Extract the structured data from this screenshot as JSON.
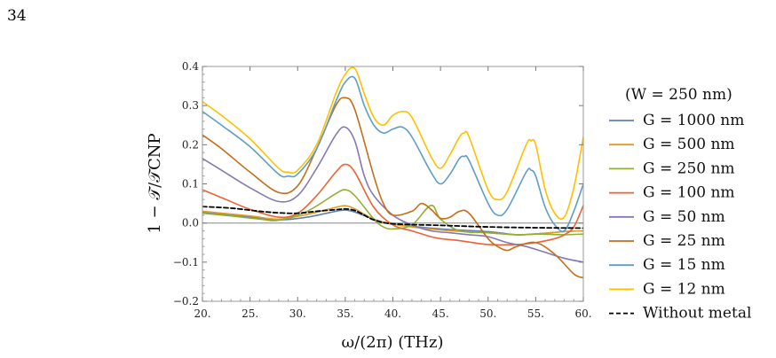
{
  "page": {
    "number": "34"
  },
  "chart_data": {
    "type": "line",
    "title": "",
    "xlabel": "ω/(2π) (THz)",
    "ylabel": "1 − 𝒯/𝒯CNP",
    "xlim": [
      20,
      60
    ],
    "ylim": [
      -0.2,
      0.4
    ],
    "xticks": [
      20,
      25,
      30,
      35,
      40,
      45,
      50,
      55,
      60
    ],
    "xtick_labels": [
      "20.",
      "25.",
      "30.",
      "35.",
      "40.",
      "45.",
      "50.",
      "55.",
      "60."
    ],
    "yticks": [
      -0.2,
      -0.1,
      0.0,
      0.1,
      0.2,
      0.3,
      0.4
    ],
    "ytick_labels": [
      "−0.2",
      "−0.1",
      "0.0",
      "0.1",
      "0.2",
      "0.3",
      "0.4"
    ],
    "grid": false,
    "zero_line": true,
    "legend_title": "(W = 250 nm)",
    "legend_position": "right",
    "series": [
      {
        "name": "G = 1000 nm",
        "color": "#5e81b5",
        "dash": "solid",
        "x": [
          20,
          25,
          28,
          31,
          34,
          35,
          36,
          38,
          40,
          45,
          50,
          53,
          55,
          58,
          60
        ],
        "y": [
          0.027,
          0.015,
          0.008,
          0.015,
          0.03,
          0.033,
          0.028,
          0.01,
          -0.003,
          -0.015,
          -0.022,
          -0.03,
          -0.028,
          -0.022,
          -0.02
        ]
      },
      {
        "name": "G = 500 nm",
        "color": "#e19c24",
        "dash": "solid",
        "x": [
          20,
          25,
          28,
          31,
          34,
          35,
          36,
          38,
          40,
          45,
          50,
          53,
          55,
          58,
          60
        ],
        "y": [
          0.03,
          0.018,
          0.01,
          0.022,
          0.04,
          0.044,
          0.036,
          0.01,
          -0.003,
          -0.018,
          -0.025,
          -0.03,
          -0.028,
          -0.022,
          -0.02
        ]
      },
      {
        "name": "G = 250 nm",
        "color": "#8fb032",
        "dash": "solid",
        "x": [
          20,
          23,
          26,
          28,
          31,
          34,
          35,
          36,
          38,
          39,
          40,
          42,
          44,
          45,
          47,
          50,
          53,
          55,
          58,
          60
        ],
        "y": [
          0.025,
          0.018,
          0.01,
          0.007,
          0.03,
          0.075,
          0.085,
          0.07,
          0.01,
          -0.01,
          -0.015,
          -0.005,
          0.045,
          0.01,
          -0.02,
          -0.025,
          -0.03,
          -0.028,
          -0.03,
          -0.028
        ]
      },
      {
        "name": "G = 100 nm",
        "color": "#eb6235",
        "dash": "solid",
        "x": [
          20,
          22,
          25,
          28,
          30,
          32,
          34,
          35,
          36,
          38,
          40,
          42,
          44,
          45,
          47,
          50,
          53,
          55,
          57,
          58,
          59,
          60
        ],
        "y": [
          0.085,
          0.065,
          0.035,
          0.015,
          0.025,
          0.07,
          0.13,
          0.15,
          0.13,
          0.04,
          -0.005,
          -0.02,
          -0.035,
          -0.04,
          -0.045,
          -0.055,
          -0.055,
          -0.05,
          -0.04,
          -0.03,
          -0.01,
          0.045
        ]
      },
      {
        "name": "G = 50 nm",
        "color": "#8778b3",
        "dash": "solid",
        "x": [
          20,
          22,
          25,
          28,
          30,
          32,
          34,
          35,
          36,
          37,
          38,
          40,
          42,
          44,
          46,
          48,
          50,
          52,
          54,
          56,
          58,
          60
        ],
        "y": [
          0.165,
          0.135,
          0.09,
          0.055,
          0.07,
          0.14,
          0.225,
          0.245,
          0.21,
          0.12,
          0.07,
          0.02,
          -0.005,
          -0.02,
          -0.025,
          -0.03,
          -0.035,
          -0.05,
          -0.06,
          -0.075,
          -0.09,
          -0.1
        ]
      },
      {
        "name": "G = 25 nm",
        "color": "#c56e1a",
        "dash": "solid",
        "x": [
          20,
          22,
          25,
          28,
          30,
          32,
          34,
          35,
          36,
          38,
          39,
          40,
          42,
          43,
          44,
          45,
          46,
          47,
          48,
          50,
          51,
          52,
          53,
          55,
          57,
          59,
          60
        ],
        "y": [
          0.225,
          0.19,
          0.13,
          0.078,
          0.095,
          0.19,
          0.3,
          0.32,
          0.29,
          0.12,
          0.05,
          0.02,
          0.03,
          0.05,
          0.035,
          0.012,
          0.015,
          0.03,
          0.025,
          -0.04,
          -0.06,
          -0.07,
          -0.06,
          -0.05,
          -0.08,
          -0.13,
          -0.14
        ]
      },
      {
        "name": "G = 15 nm",
        "color": "#5d9ec7",
        "dash": "solid",
        "x": [
          20,
          22,
          25,
          28,
          29,
          30,
          32,
          34,
          35,
          36,
          37,
          38,
          39,
          40,
          41,
          42,
          44,
          45,
          46,
          47,
          47.5,
          48,
          50,
          51,
          52,
          54,
          54.5,
          55,
          56,
          57,
          58,
          59,
          60
        ],
        "y": [
          0.285,
          0.25,
          0.195,
          0.125,
          0.12,
          0.125,
          0.19,
          0.31,
          0.36,
          0.37,
          0.3,
          0.25,
          0.23,
          0.24,
          0.245,
          0.22,
          0.13,
          0.1,
          0.125,
          0.165,
          0.17,
          0.16,
          0.05,
          0.02,
          0.035,
          0.13,
          0.135,
          0.12,
          0.04,
          -0.005,
          -0.02,
          0.03,
          0.1
        ]
      },
      {
        "name": "G = 12 nm",
        "color": "#ffbf00",
        "dash": "solid",
        "x": [
          20,
          22,
          25,
          28,
          29,
          30,
          32,
          34,
          35,
          36,
          37,
          38,
          39,
          40,
          41,
          42,
          44,
          45,
          46,
          47,
          47.5,
          48,
          50,
          51,
          52,
          54,
          54.5,
          55,
          56,
          57,
          58,
          59,
          60
        ],
        "y": [
          0.31,
          0.275,
          0.215,
          0.14,
          0.13,
          0.135,
          0.2,
          0.33,
          0.38,
          0.395,
          0.33,
          0.27,
          0.25,
          0.275,
          0.285,
          0.27,
          0.17,
          0.14,
          0.175,
          0.22,
          0.23,
          0.22,
          0.085,
          0.06,
          0.08,
          0.2,
          0.21,
          0.2,
          0.085,
          0.025,
          0.015,
          0.09,
          0.22
        ]
      },
      {
        "name": "Without metal",
        "color": "#000000",
        "dash": "dashed",
        "x": [
          20,
          23,
          26,
          28,
          30,
          32,
          34,
          35,
          36,
          37,
          38,
          40,
          45,
          50,
          55,
          60
        ],
        "y": [
          0.042,
          0.038,
          0.03,
          0.026,
          0.025,
          0.03,
          0.034,
          0.036,
          0.032,
          0.02,
          0.008,
          -0.002,
          -0.006,
          -0.01,
          -0.012,
          -0.013
        ]
      }
    ]
  }
}
